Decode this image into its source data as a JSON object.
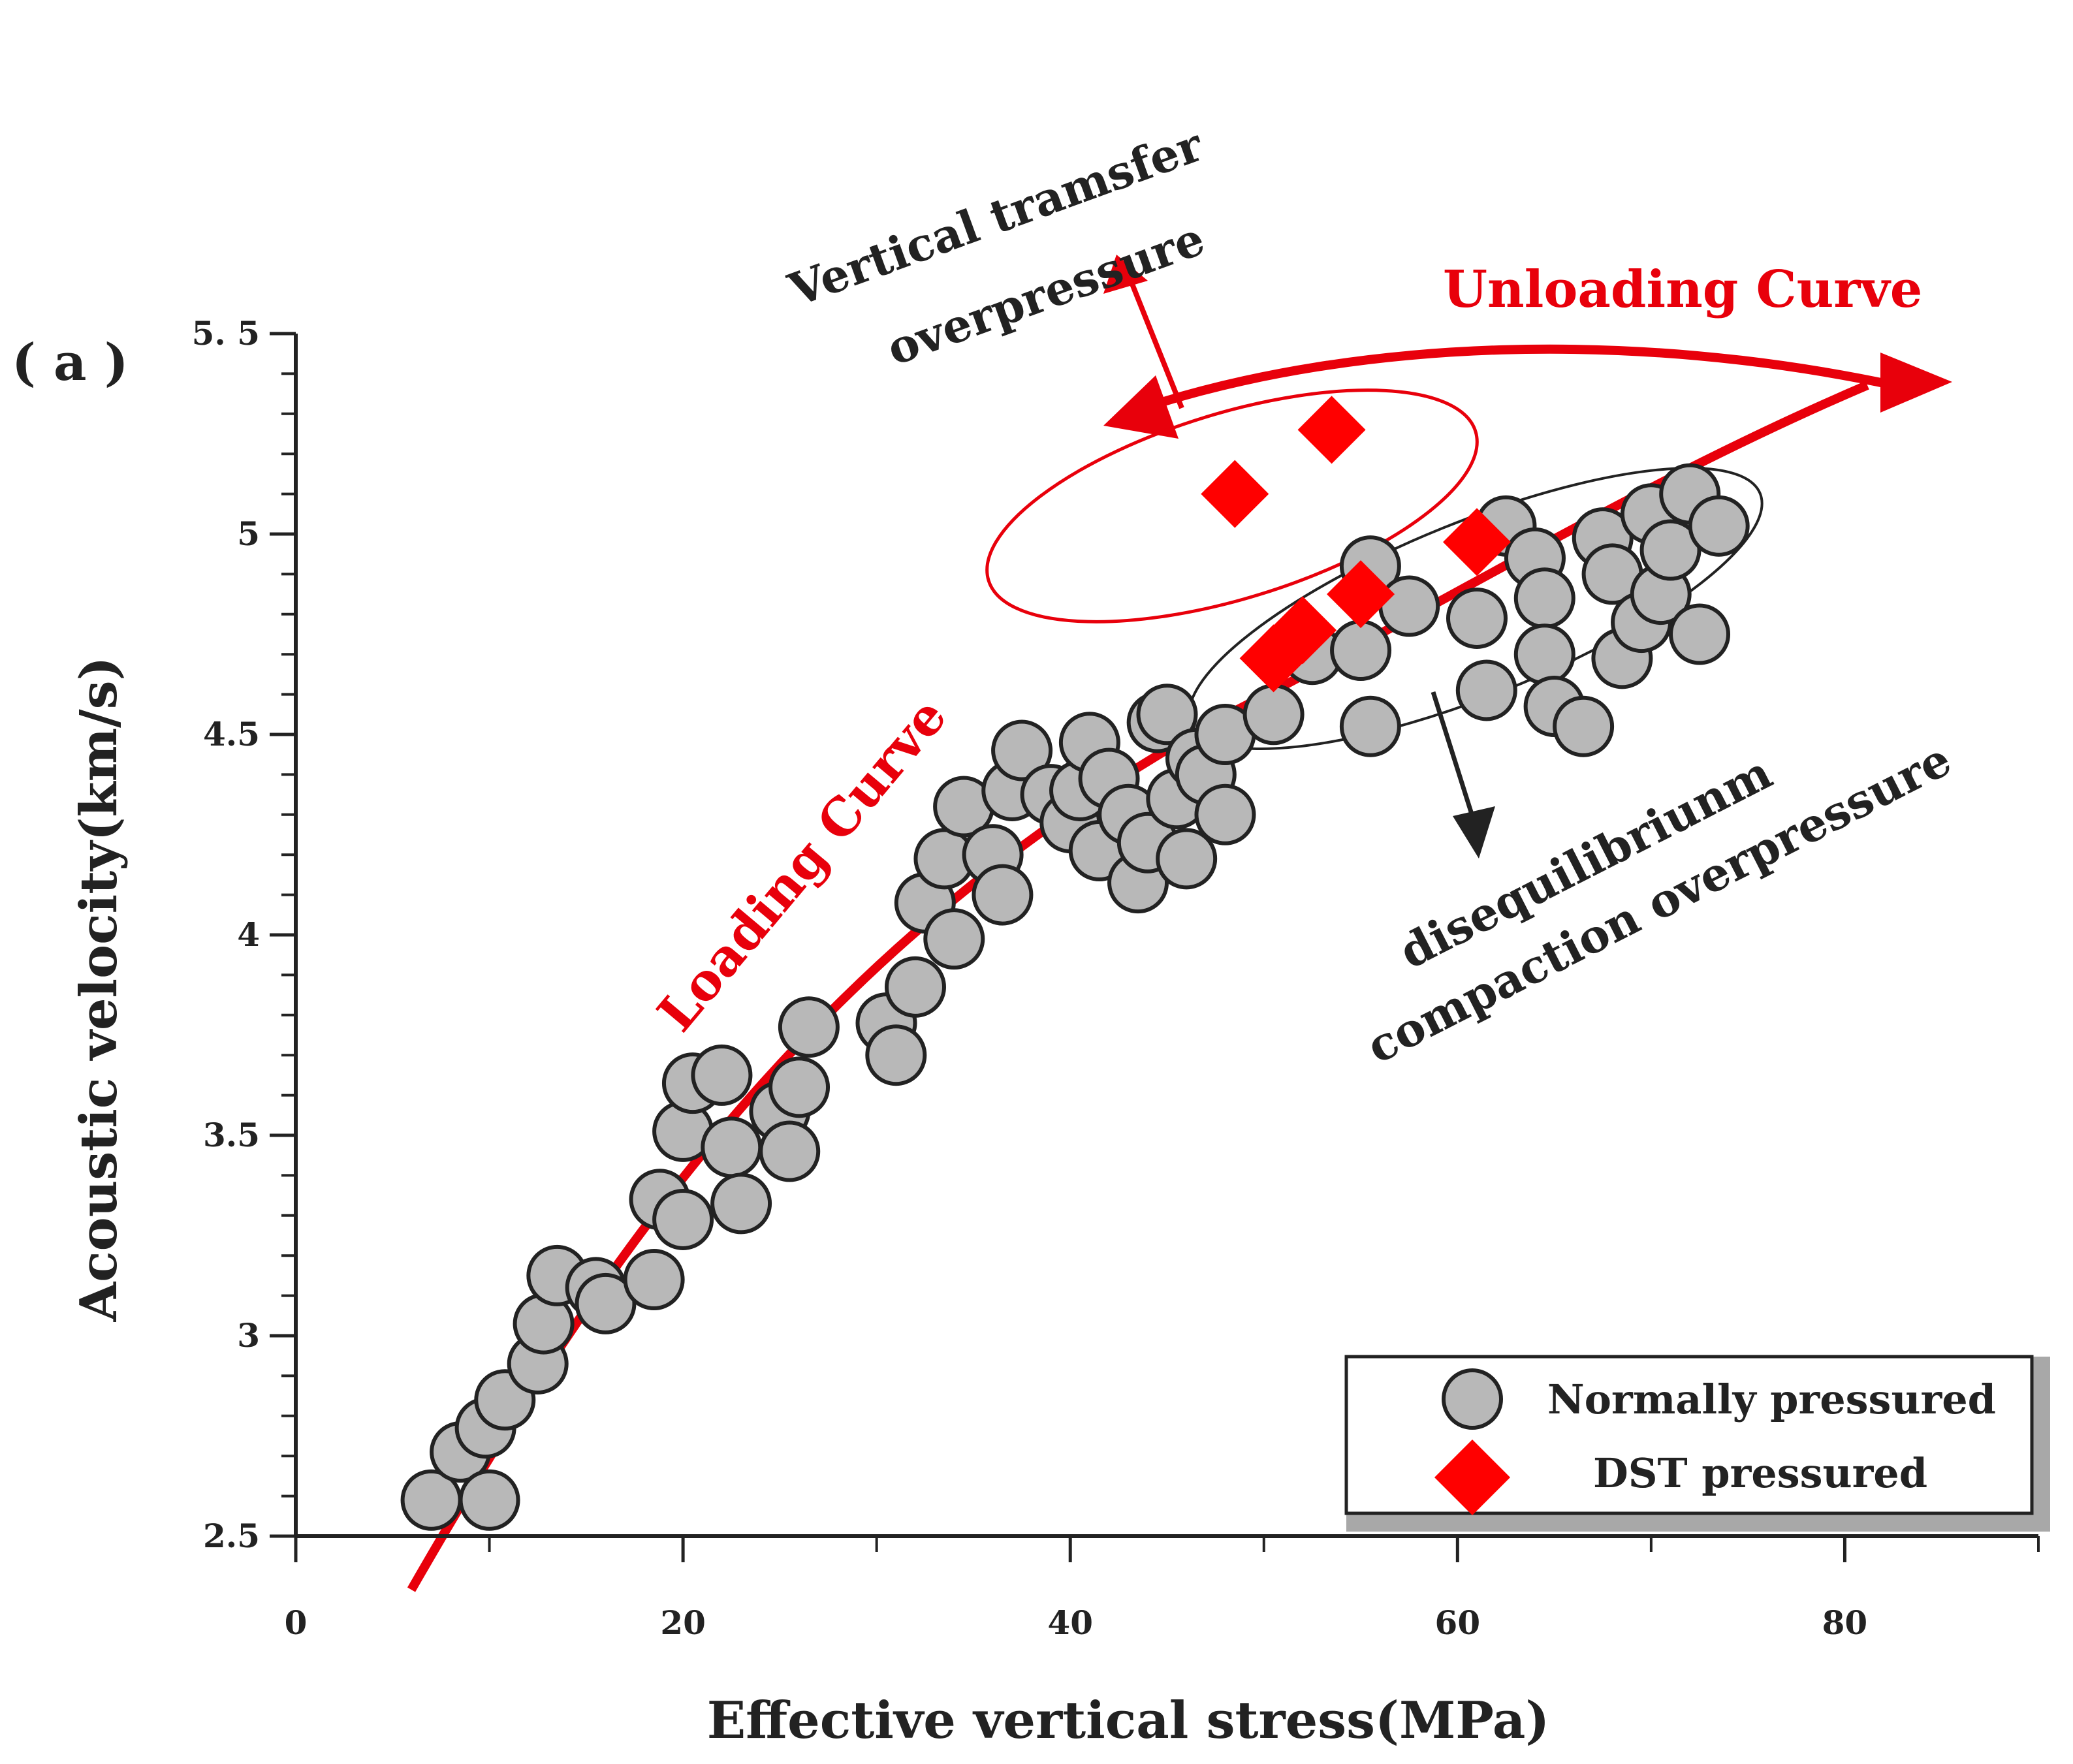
{
  "colors": {
    "circle_fill": "#b8b8b8",
    "circle_stroke": "#222222",
    "diamond_fill": "#ff0000",
    "red": "#e8000b",
    "axis": "#222222",
    "legend_shadow": "#a8a8a8"
  },
  "panel_label": "( a )",
  "annotations": {
    "loading_curve": "Loading Curve",
    "unloading_curve": "Unloading Curve",
    "vertical_line1": "Vertical tramsfer",
    "vertical_line2": "overpressure",
    "diseq_line1": "disequilibriunm",
    "diseq_line2": "compaction overpressure"
  },
  "legend": {
    "normal": "Normally pressured",
    "dst": "DST pressured"
  },
  "chart_data": {
    "type": "scatter",
    "xlabel": "Effective vertical stress(MPa)",
    "ylabel": "Acoustic velocity(km/s)",
    "xlim": [
      0,
      90
    ],
    "ylim": [
      2.5,
      5.5
    ],
    "xticks": [
      {
        "v": 0,
        "label": "0"
      },
      {
        "v": 20,
        "label": "20"
      },
      {
        "v": 40,
        "label": "40"
      },
      {
        "v": 60,
        "label": "60"
      },
      {
        "v": 80,
        "label": "80"
      }
    ],
    "yticks": [
      {
        "v": 2.5,
        "label": "2.5"
      },
      {
        "v": 3,
        "label": "3"
      },
      {
        "v": 3.5,
        "label": "3.5"
      },
      {
        "v": 4,
        "label": "4"
      },
      {
        "v": 4.5,
        "label": "4.5"
      },
      {
        "v": 5,
        "label": "5"
      },
      {
        "v": 5.5,
        "label": "5. 5"
      }
    ],
    "legend_position": "bottom-right",
    "grid": false,
    "series": [
      {
        "name": "Normally pressured",
        "marker": "circle",
        "points": [
          [
            7.0,
            2.59
          ],
          [
            8.5,
            2.71
          ],
          [
            10.0,
            2.59
          ],
          [
            9.8,
            2.77
          ],
          [
            10.8,
            2.84
          ],
          [
            12.5,
            2.93
          ],
          [
            12.8,
            3.03
          ],
          [
            13.5,
            3.15
          ],
          [
            15.5,
            3.12
          ],
          [
            16.0,
            3.08
          ],
          [
            18.5,
            3.14
          ],
          [
            18.8,
            3.34
          ],
          [
            20.0,
            3.29
          ],
          [
            20.0,
            3.51
          ],
          [
            20.5,
            3.63
          ],
          [
            22.0,
            3.65
          ],
          [
            22.5,
            3.47
          ],
          [
            23.0,
            3.33
          ],
          [
            25.0,
            3.56
          ],
          [
            25.5,
            3.46
          ],
          [
            26.0,
            3.62
          ],
          [
            26.5,
            3.77
          ],
          [
            30.5,
            3.78
          ],
          [
            31.0,
            3.7
          ],
          [
            32.0,
            3.87
          ],
          [
            32.5,
            4.08
          ],
          [
            33.5,
            4.19
          ],
          [
            34.0,
            3.99
          ],
          [
            34.5,
            4.32
          ],
          [
            36.0,
            4.2
          ],
          [
            36.5,
            4.1
          ],
          [
            37.0,
            4.36
          ],
          [
            37.5,
            4.46
          ],
          [
            39.0,
            4.35
          ],
          [
            40.0,
            4.28
          ],
          [
            40.5,
            4.36
          ],
          [
            41.0,
            4.48
          ],
          [
            41.5,
            4.21
          ],
          [
            42.0,
            4.39
          ],
          [
            43.0,
            4.3
          ],
          [
            43.5,
            4.13
          ],
          [
            44.0,
            4.23
          ],
          [
            44.5,
            4.53
          ],
          [
            45.0,
            4.55
          ],
          [
            45.5,
            4.34
          ],
          [
            46.0,
            4.19
          ],
          [
            46.5,
            4.44
          ],
          [
            47.0,
            4.4
          ],
          [
            48.0,
            4.5
          ],
          [
            48.0,
            4.3
          ],
          [
            50.5,
            4.55
          ],
          [
            52.5,
            4.7
          ],
          [
            55.0,
            4.71
          ],
          [
            55.5,
            4.52
          ],
          [
            55.5,
            4.92
          ],
          [
            57.5,
            4.82
          ],
          [
            61.0,
            4.79
          ],
          [
            61.5,
            4.61
          ],
          [
            62.5,
            5.02
          ],
          [
            64.0,
            4.94
          ],
          [
            64.5,
            4.84
          ],
          [
            64.5,
            4.7
          ],
          [
            65.0,
            4.57
          ],
          [
            66.5,
            4.52
          ],
          [
            67.5,
            4.99
          ],
          [
            68.0,
            4.9
          ],
          [
            68.5,
            4.69
          ],
          [
            69.5,
            4.78
          ],
          [
            70.0,
            5.05
          ],
          [
            70.5,
            4.85
          ],
          [
            71.0,
            4.96
          ],
          [
            72.0,
            5.1
          ],
          [
            72.5,
            4.75
          ],
          [
            73.5,
            5.02
          ]
        ]
      },
      {
        "name": "DST pressured",
        "marker": "diamond",
        "points": [
          [
            48.5,
            5.1
          ],
          [
            53.5,
            5.26
          ],
          [
            50.5,
            4.69
          ],
          [
            52.0,
            4.76
          ],
          [
            55.0,
            4.85
          ],
          [
            61.0,
            4.98
          ]
        ]
      }
    ]
  }
}
